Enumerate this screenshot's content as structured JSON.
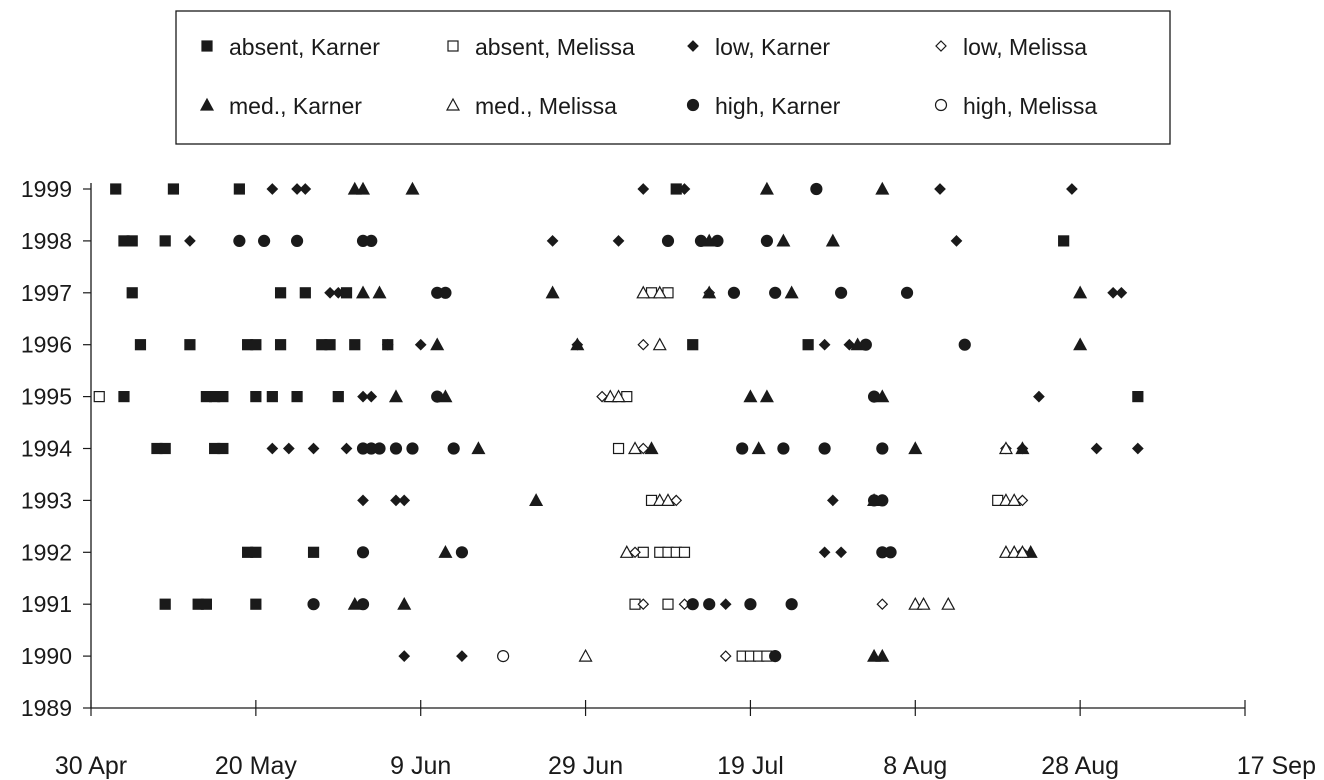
{
  "chart_data": {
    "type": "scatter",
    "title": "",
    "xlabel": "",
    "ylabel": "",
    "x_ticks": [
      "30 Apr",
      "20 May",
      "9 Jun",
      "29 Jun",
      "19 Jul",
      "8 Aug",
      "28 Aug",
      "17 Sep"
    ],
    "xlim": [
      "30 Apr",
      "17 Sep"
    ],
    "y_ticks": [
      "1989",
      "1990",
      "1991",
      "1992",
      "1993",
      "1994",
      "1995",
      "1996",
      "1997",
      "1998",
      "1999"
    ],
    "ylim": [
      1989,
      1999
    ],
    "grid": false,
    "legend_position": "top",
    "legend": [
      {
        "label": "absent, Karner",
        "marker": "square",
        "filled": true
      },
      {
        "label": "absent, Melissa",
        "marker": "square",
        "filled": false
      },
      {
        "label": "low, Karner",
        "marker": "diamond",
        "filled": true
      },
      {
        "label": "low, Melissa",
        "marker": "diamond",
        "filled": false
      },
      {
        "label": "med., Karner",
        "marker": "triangle",
        "filled": true
      },
      {
        "label": "med., Melissa",
        "marker": "triangle",
        "filled": false
      },
      {
        "label": "high, Karner",
        "marker": "circle",
        "filled": true
      },
      {
        "label": "high, Melissa",
        "marker": "circle",
        "filled": false
      }
    ],
    "series": [
      {
        "name": "absent, Karner",
        "points": [
          {
            "date": "3 May",
            "year": 1999
          },
          {
            "date": "10 May",
            "year": 1999
          },
          {
            "date": "18 May",
            "year": 1999
          },
          {
            "date": "10 Jul",
            "year": 1999
          },
          {
            "date": "4 May",
            "year": 1998
          },
          {
            "date": "5 May",
            "year": 1998
          },
          {
            "date": "9 May",
            "year": 1998
          },
          {
            "date": "26 Aug",
            "year": 1998
          },
          {
            "date": "5 May",
            "year": 1997
          },
          {
            "date": "23 May",
            "year": 1997
          },
          {
            "date": "26 May",
            "year": 1997
          },
          {
            "date": "31 May",
            "year": 1997
          },
          {
            "date": "6 May",
            "year": 1996
          },
          {
            "date": "12 May",
            "year": 1996
          },
          {
            "date": "19 May",
            "year": 1996
          },
          {
            "date": "20 May",
            "year": 1996
          },
          {
            "date": "23 May",
            "year": 1996
          },
          {
            "date": "28 May",
            "year": 1996
          },
          {
            "date": "29 May",
            "year": 1996
          },
          {
            "date": "1 Jun",
            "year": 1996
          },
          {
            "date": "5 Jun",
            "year": 1996
          },
          {
            "date": "12 Jul",
            "year": 1996
          },
          {
            "date": "26 Jul",
            "year": 1996
          },
          {
            "date": "4 May",
            "year": 1995
          },
          {
            "date": "14 May",
            "year": 1995
          },
          {
            "date": "15 May",
            "year": 1995
          },
          {
            "date": "16 May",
            "year": 1995
          },
          {
            "date": "20 May",
            "year": 1995
          },
          {
            "date": "22 May",
            "year": 1995
          },
          {
            "date": "25 May",
            "year": 1995
          },
          {
            "date": "30 May",
            "year": 1995
          },
          {
            "date": "4 Sep",
            "year": 1995
          },
          {
            "date": "8 May",
            "year": 1994
          },
          {
            "date": "9 May",
            "year": 1994
          },
          {
            "date": "15 May",
            "year": 1994
          },
          {
            "date": "16 May",
            "year": 1994
          },
          {
            "date": "19 May",
            "year": 1992
          },
          {
            "date": "20 May",
            "year": 1992
          },
          {
            "date": "27 May",
            "year": 1992
          },
          {
            "date": "9 May",
            "year": 1991
          },
          {
            "date": "13 May",
            "year": 1991
          },
          {
            "date": "14 May",
            "year": 1991
          },
          {
            "date": "20 May",
            "year": 1991
          }
        ]
      },
      {
        "name": "absent, Melissa",
        "points": [
          {
            "date": "1 May",
            "year": 1995
          },
          {
            "date": "4 Jul",
            "year": 1995
          },
          {
            "date": "3 Jul",
            "year": 1994
          },
          {
            "date": "7 Jul",
            "year": 1993
          },
          {
            "date": "18 Aug",
            "year": 1993
          },
          {
            "date": "6 Jul",
            "year": 1992
          },
          {
            "date": "8 Jul",
            "year": 1992
          },
          {
            "date": "9 Jul",
            "year": 1992
          },
          {
            "date": "10 Jul",
            "year": 1992
          },
          {
            "date": "11 Jul",
            "year": 1992
          },
          {
            "date": "5 Jul",
            "year": 1991
          },
          {
            "date": "9 Jul",
            "year": 1991
          },
          {
            "date": "18 Jul",
            "year": 1990
          },
          {
            "date": "19 Jul",
            "year": 1990
          },
          {
            "date": "20 Jul",
            "year": 1990
          },
          {
            "date": "21 Jul",
            "year": 1990
          },
          {
            "date": "7 Jul",
            "year": 1997
          },
          {
            "date": "9 Jul",
            "year": 1997
          }
        ]
      },
      {
        "name": "low, Karner",
        "points": [
          {
            "date": "22 May",
            "year": 1999
          },
          {
            "date": "25 May",
            "year": 1999
          },
          {
            "date": "26 May",
            "year": 1999
          },
          {
            "date": "6 Jul",
            "year": 1999
          },
          {
            "date": "11 Jul",
            "year": 1999
          },
          {
            "date": "11 Aug",
            "year": 1999
          },
          {
            "date": "27 Aug",
            "year": 1999
          },
          {
            "date": "12 May",
            "year": 1998
          },
          {
            "date": "25 Jun",
            "year": 1998
          },
          {
            "date": "3 Jul",
            "year": 1998
          },
          {
            "date": "15 Jul",
            "year": 1998
          },
          {
            "date": "13 Aug",
            "year": 1998
          },
          {
            "date": "29 May",
            "year": 1997
          },
          {
            "date": "30 May",
            "year": 1997
          },
          {
            "date": "1 Sep",
            "year": 1997
          },
          {
            "date": "2 Sep",
            "year": 1997
          },
          {
            "date": "5 Jun",
            "year": 1996
          },
          {
            "date": "9 Jun",
            "year": 1996
          },
          {
            "date": "28 Jun",
            "year": 1996
          },
          {
            "date": "28 Jul",
            "year": 1996
          },
          {
            "date": "31 Jul",
            "year": 1996
          },
          {
            "date": "2 Jun",
            "year": 1995
          },
          {
            "date": "3 Jun",
            "year": 1995
          },
          {
            "date": "23 Aug",
            "year": 1995
          },
          {
            "date": "22 May",
            "year": 1994
          },
          {
            "date": "24 May",
            "year": 1994
          },
          {
            "date": "27 May",
            "year": 1994
          },
          {
            "date": "31 May",
            "year": 1994
          },
          {
            "date": "21 Aug",
            "year": 1994
          },
          {
            "date": "30 Aug",
            "year": 1994
          },
          {
            "date": "4 Sep",
            "year": 1994
          },
          {
            "date": "2 Jun",
            "year": 1993
          },
          {
            "date": "6 Jun",
            "year": 1993
          },
          {
            "date": "7 Jun",
            "year": 1993
          },
          {
            "date": "29 Jul",
            "year": 1993
          },
          {
            "date": "28 Jul",
            "year": 1992
          },
          {
            "date": "30 Jul",
            "year": 1992
          },
          {
            "date": "16 Jul",
            "year": 1991
          },
          {
            "date": "7 Jun",
            "year": 1990
          },
          {
            "date": "14 Jun",
            "year": 1990
          }
        ]
      },
      {
        "name": "low, Melissa",
        "points": [
          {
            "date": "14 Jul",
            "year": 1997
          },
          {
            "date": "6 Jul",
            "year": 1996
          },
          {
            "date": "1 Jul",
            "year": 1995
          },
          {
            "date": "6 Jul",
            "year": 1994
          },
          {
            "date": "19 Aug",
            "year": 1994
          },
          {
            "date": "10 Jul",
            "year": 1993
          },
          {
            "date": "21 Aug",
            "year": 1993
          },
          {
            "date": "5 Jul",
            "year": 1992
          },
          {
            "date": "21 Aug",
            "year": 1992
          },
          {
            "date": "6 Jul",
            "year": 1991
          },
          {
            "date": "11 Jul",
            "year": 1991
          },
          {
            "date": "4 Aug",
            "year": 1991
          },
          {
            "date": "16 Jul",
            "year": 1990
          }
        ]
      },
      {
        "name": "med., Karner",
        "points": [
          {
            "date": "1 Jun",
            "year": 1999
          },
          {
            "date": "2 Jun",
            "year": 1999
          },
          {
            "date": "8 Jun",
            "year": 1999
          },
          {
            "date": "21 Jul",
            "year": 1999
          },
          {
            "date": "4 Aug",
            "year": 1999
          },
          {
            "date": "14 Jul",
            "year": 1998
          },
          {
            "date": "23 Jul",
            "year": 1998
          },
          {
            "date": "29 Jul",
            "year": 1998
          },
          {
            "date": "2 Jun",
            "year": 1997
          },
          {
            "date": "4 Jun",
            "year": 1997
          },
          {
            "date": "25 Jun",
            "year": 1997
          },
          {
            "date": "14 Jul",
            "year": 1997
          },
          {
            "date": "24 Jul",
            "year": 1997
          },
          {
            "date": "28 Aug",
            "year": 1997
          },
          {
            "date": "11 Jun",
            "year": 1996
          },
          {
            "date": "28 Jun",
            "year": 1996
          },
          {
            "date": "1 Aug",
            "year": 1996
          },
          {
            "date": "28 Aug",
            "year": 1996
          },
          {
            "date": "6 Jun",
            "year": 1995
          },
          {
            "date": "12 Jun",
            "year": 1995
          },
          {
            "date": "19 Jul",
            "year": 1995
          },
          {
            "date": "21 Jul",
            "year": 1995
          },
          {
            "date": "4 Aug",
            "year": 1995
          },
          {
            "date": "16 Jun",
            "year": 1994
          },
          {
            "date": "7 Jul",
            "year": 1994
          },
          {
            "date": "20 Jul",
            "year": 1994
          },
          {
            "date": "8 Aug",
            "year": 1994
          },
          {
            "date": "21 Aug",
            "year": 1994
          },
          {
            "date": "23 Jun",
            "year": 1993
          },
          {
            "date": "3 Aug",
            "year": 1993
          },
          {
            "date": "12 Jun",
            "year": 1992
          },
          {
            "date": "22 Aug",
            "year": 1992
          },
          {
            "date": "1 Jun",
            "year": 1991
          },
          {
            "date": "7 Jun",
            "year": 1991
          },
          {
            "date": "3 Aug",
            "year": 1990
          },
          {
            "date": "4 Aug",
            "year": 1990
          }
        ]
      },
      {
        "name": "med., Melissa",
        "points": [
          {
            "date": "6 Jul",
            "year": 1997
          },
          {
            "date": "8 Jul",
            "year": 1997
          },
          {
            "date": "8 Jul",
            "year": 1996
          },
          {
            "date": "2 Jul",
            "year": 1995
          },
          {
            "date": "3 Jul",
            "year": 1995
          },
          {
            "date": "5 Jul",
            "year": 1994
          },
          {
            "date": "19 Aug",
            "year": 1994
          },
          {
            "date": "8 Jul",
            "year": 1993
          },
          {
            "date": "9 Jul",
            "year": 1993
          },
          {
            "date": "19 Aug",
            "year": 1993
          },
          {
            "date": "20 Aug",
            "year": 1993
          },
          {
            "date": "4 Jul",
            "year": 1992
          },
          {
            "date": "19 Aug",
            "year": 1992
          },
          {
            "date": "20 Aug",
            "year": 1992
          },
          {
            "date": "21 Aug",
            "year": 1992
          },
          {
            "date": "8 Aug",
            "year": 1991
          },
          {
            "date": "9 Aug",
            "year": 1991
          },
          {
            "date": "12 Aug",
            "year": 1991
          },
          {
            "date": "29 Jun",
            "year": 1990
          }
        ]
      },
      {
        "name": "high, Karner",
        "points": [
          {
            "date": "27 Jul",
            "year": 1999
          },
          {
            "date": "18 May",
            "year": 1998
          },
          {
            "date": "21 May",
            "year": 1998
          },
          {
            "date": "25 May",
            "year": 1998
          },
          {
            "date": "2 Jun",
            "year": 1998
          },
          {
            "date": "3 Jun",
            "year": 1998
          },
          {
            "date": "9 Jul",
            "year": 1998
          },
          {
            "date": "13 Jul",
            "year": 1998
          },
          {
            "date": "15 Jul",
            "year": 1998
          },
          {
            "date": "21 Jul",
            "year": 1998
          },
          {
            "date": "11 Jun",
            "year": 1997
          },
          {
            "date": "12 Jun",
            "year": 1997
          },
          {
            "date": "17 Jul",
            "year": 1997
          },
          {
            "date": "22 Jul",
            "year": 1997
          },
          {
            "date": "30 Jul",
            "year": 1997
          },
          {
            "date": "7 Aug",
            "year": 1997
          },
          {
            "date": "2 Aug",
            "year": 1996
          },
          {
            "date": "14 Aug",
            "year": 1996
          },
          {
            "date": "11 Jun",
            "year": 1995
          },
          {
            "date": "3 Aug",
            "year": 1995
          },
          {
            "date": "2 Jun",
            "year": 1994
          },
          {
            "date": "3 Jun",
            "year": 1994
          },
          {
            "date": "4 Jun",
            "year": 1994
          },
          {
            "date": "6 Jun",
            "year": 1994
          },
          {
            "date": "8 Jun",
            "year": 1994
          },
          {
            "date": "13 Jun",
            "year": 1994
          },
          {
            "date": "18 Jul",
            "year": 1994
          },
          {
            "date": "23 Jul",
            "year": 1994
          },
          {
            "date": "28 Jul",
            "year": 1994
          },
          {
            "date": "4 Aug",
            "year": 1994
          },
          {
            "date": "3 Aug",
            "year": 1993
          },
          {
            "date": "4 Aug",
            "year": 1993
          },
          {
            "date": "2 Jun",
            "year": 1992
          },
          {
            "date": "14 Jun",
            "year": 1992
          },
          {
            "date": "4 Aug",
            "year": 1992
          },
          {
            "date": "5 Aug",
            "year": 1992
          },
          {
            "date": "27 May",
            "year": 1991
          },
          {
            "date": "2 Jun",
            "year": 1991
          },
          {
            "date": "12 Jul",
            "year": 1991
          },
          {
            "date": "14 Jul",
            "year": 1991
          },
          {
            "date": "19 Jul",
            "year": 1991
          },
          {
            "date": "24 Jul",
            "year": 1991
          },
          {
            "date": "22 Jul",
            "year": 1990
          }
        ]
      },
      {
        "name": "high, Melissa",
        "points": [
          {
            "date": "19 Jun",
            "year": 1990
          }
        ]
      }
    ]
  }
}
